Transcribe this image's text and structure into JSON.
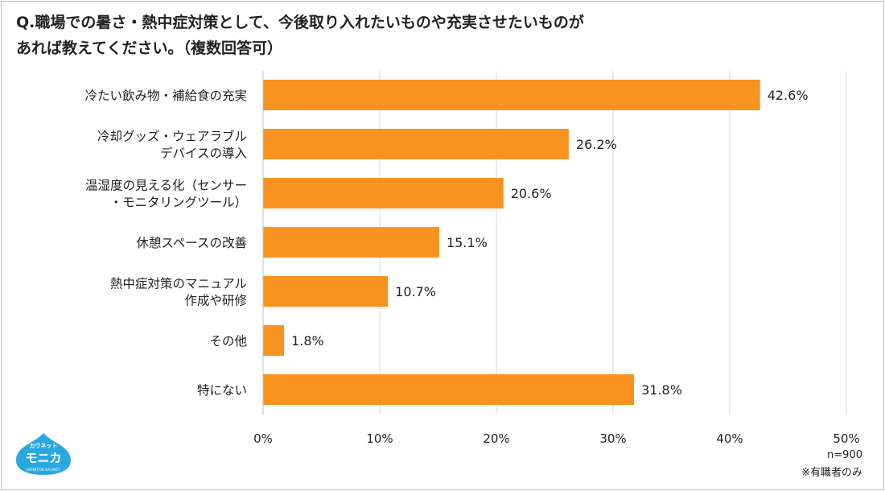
{
  "title": {
    "line1": "Q.職場での暑さ・熱中症対策として、今後取り入れたいものや充実させたいものが",
    "line2": "あれば教えてください。（複数回答可）"
  },
  "notes": {
    "n": "n=900",
    "respondents": "※有職者のみ"
  },
  "logo": {
    "kana": "カウネット",
    "name": "モニカ",
    "sub": "MONITOR KAUNET"
  },
  "chart_data": {
    "type": "bar",
    "orientation": "horizontal",
    "categories": [
      [
        "冷たい飲み物・補給食の充実"
      ],
      [
        "冷却グッズ・ウェアラブル",
        "デバイスの導入"
      ],
      [
        "温湿度の見える化（センサー",
        "・モニタリングツール）"
      ],
      [
        "休憩スペースの改善"
      ],
      [
        "熱中症対策のマニュアル",
        "作成や研修"
      ],
      [
        "その他"
      ],
      [
        "特にない"
      ]
    ],
    "values": [
      42.6,
      26.2,
      20.6,
      15.1,
      10.7,
      1.8,
      31.8
    ],
    "data_labels": [
      "42.6%",
      "26.2%",
      "20.6%",
      "15.1%",
      "10.7%",
      "1.8%",
      "31.8%"
    ],
    "xlim": [
      0,
      50
    ],
    "x_ticks": [
      "0%",
      "10%",
      "20%",
      "30%",
      "40%",
      "50%"
    ],
    "grid": true,
    "bar_color": "#F7931E"
  }
}
